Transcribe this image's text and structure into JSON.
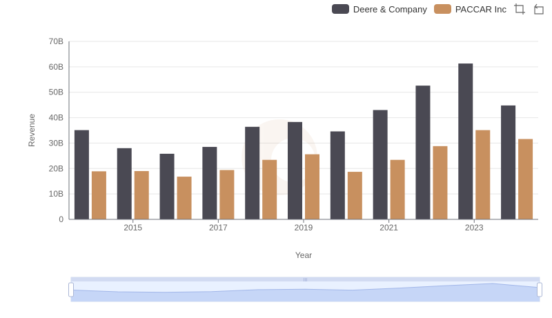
{
  "legend": [
    {
      "name": "Deere & Company",
      "color": "#4a4953"
    },
    {
      "name": "PACCAR Inc",
      "color": "#c8905f"
    }
  ],
  "toolbox": {
    "zoom_icon": "zoom-icon",
    "restore_icon": "restore-icon"
  },
  "chart_data": {
    "type": "bar",
    "categories": [
      "2014",
      "2015",
      "2016",
      "2017",
      "2018",
      "2019",
      "2020",
      "2021",
      "2022",
      "2023",
      "2024"
    ],
    "x_tick_labels": [
      "2015",
      "2017",
      "2019",
      "2021",
      "2023"
    ],
    "xlabel": "Year",
    "ylabel": "Revenue",
    "ylim": [
      0,
      70
    ],
    "y_tick_labels": [
      "0",
      "10B",
      "20B",
      "30B",
      "40B",
      "50B",
      "60B",
      "70B"
    ],
    "grid": true,
    "legend_position": "top-right",
    "series": [
      {
        "name": "Deere & Company",
        "color": "#4a4953",
        "values": [
          35.1,
          28.0,
          25.8,
          28.5,
          36.4,
          38.3,
          34.6,
          43.0,
          52.6,
          61.3,
          44.8
        ]
      },
      {
        "name": "PACCAR Inc",
        "color": "#c8905f",
        "values": [
          18.9,
          19.0,
          16.8,
          19.4,
          23.4,
          25.6,
          18.7,
          23.4,
          28.8,
          35.1,
          31.6
        ]
      }
    ],
    "data_zoom": {
      "start": 0,
      "end": 100
    }
  }
}
